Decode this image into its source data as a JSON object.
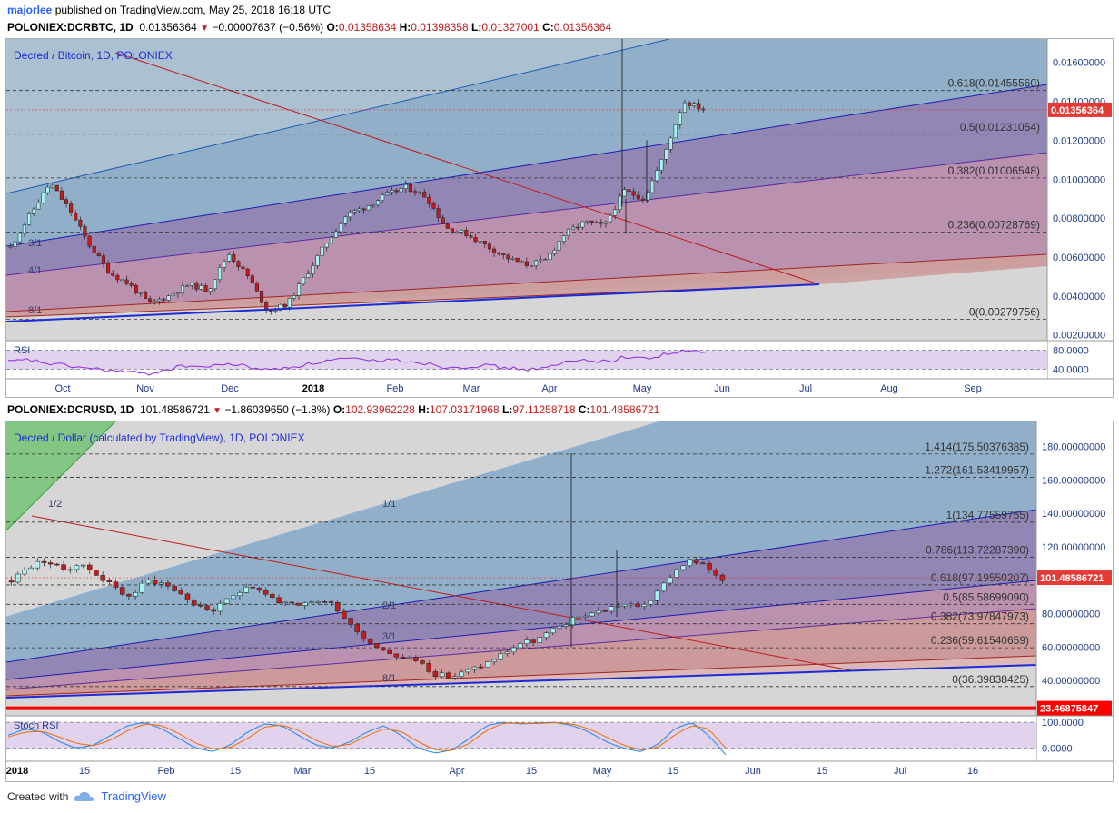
{
  "header": {
    "author": "majorlee",
    "published": "published on TradingView.com, May 25, 2018 16:18 UTC"
  },
  "chart1": {
    "symbol_line": {
      "symbol": "POLONIEX:DCRBTC, 1D",
      "last": "0.01356364",
      "change": "−0.00007637 (−0.56%)",
      "o_label": "O:",
      "o": "0.01358634",
      "h_label": "H:",
      "h": "0.01398358",
      "l_label": "L:",
      "l": "0.01327001",
      "c_label": "C:",
      "c": "0.01356364"
    },
    "title": "Decred / Bitcoin, 1D, POLONIEX",
    "price_badge": "0.01356364",
    "fib_labels": [
      "0.618(0.01455560)",
      "0.5(0.01231054)",
      "0.382(0.01006548)",
      "0.236(0.00728769)",
      "0(0.00279756)"
    ],
    "fan_labels": [
      "3/1",
      "4/1",
      "8/1"
    ],
    "x_labels": [
      "Oct",
      "Nov",
      "Dec",
      "2018",
      "Feb",
      "Mar",
      "Apr",
      "May",
      "Jun",
      "Jul",
      "Aug",
      "Sep"
    ],
    "rsi_label": "RSI",
    "rsi_ticks": [
      "80.0000",
      "40.0000"
    ]
  },
  "chart2": {
    "symbol_line": {
      "symbol": "POLONIEX:DCRUSD, 1D",
      "last": "101.48586721",
      "change": "−1.86039650 (−1.8%)",
      "o_label": "O:",
      "o": "102.93962228",
      "h_label": "H:",
      "h": "107.03171968",
      "l_label": "L:",
      "l": "97.11258718",
      "c_label": "C:",
      "c": "101.48586721"
    },
    "title": "Decred / Dollar (calculated by TradingView), 1D, POLONIEX",
    "price_badge": "101.48586721",
    "support_badge": "23.46875847",
    "fib_labels": [
      "1.414(175.50376385)",
      "1.272(161.53419957)",
      "1(134.77559755)",
      "0.786(113.72287390)",
      "0.618(97.19550207)",
      "0.5(85.58699090)",
      "0.382(73.97847973)",
      "0.236(59.61540659)",
      "0(36.39838425)"
    ],
    "fan_labels": [
      "1/2",
      "1/1",
      "2/1",
      "3/1",
      "8/1"
    ],
    "x_labels": [
      "2018",
      "15",
      "Feb",
      "15",
      "Mar",
      "15",
      "Apr",
      "15",
      "May",
      "15",
      "Jun",
      "15",
      "Jul",
      "16"
    ],
    "stoch_label": "Stoch RSI",
    "stoch_ticks": [
      "100.0000",
      "0.0000"
    ]
  },
  "chart_data": [
    {
      "type": "candlestick",
      "title": "Decred / Bitcoin, 1D, POLONIEX",
      "ylim": [
        0.0018,
        0.0172
      ],
      "y_ticks": [
        "0.01600000",
        "0.01400000",
        "0.01200000",
        "0.01000000",
        "0.00800000",
        "0.00600000",
        "0.00400000",
        "0.00200000"
      ],
      "y_tick_values": [
        0.016,
        0.014,
        0.012,
        0.01,
        0.008,
        0.006,
        0.004,
        0.002
      ],
      "x_categories": [
        "Oct",
        "Nov",
        "Dec",
        "2018",
        "Feb",
        "Mar",
        "Apr",
        "May",
        "Jun",
        "Jul",
        "Aug",
        "Sep"
      ],
      "close_path": [
        0.0065,
        0.0082,
        0.0098,
        0.0084,
        0.0066,
        0.0052,
        0.0046,
        0.0036,
        0.004,
        0.0046,
        0.0043,
        0.0062,
        0.005,
        0.0032,
        0.0036,
        0.0052,
        0.0068,
        0.0082,
        0.0086,
        0.0092,
        0.0096,
        0.0091,
        0.0075,
        0.0072,
        0.0066,
        0.006,
        0.0056,
        0.0058,
        0.0072,
        0.0078,
        0.0076,
        0.0094,
        0.009,
        0.0112,
        0.014,
        0.0136
      ],
      "fib_levels": [
        {
          "ratio": "0.618",
          "value": 0.0145556
        },
        {
          "ratio": "0.5",
          "value": 0.01231054
        },
        {
          "ratio": "0.382",
          "value": 0.01006548
        },
        {
          "ratio": "0.236",
          "value": 0.00728769
        },
        {
          "ratio": "0",
          "value": 0.00279756
        }
      ],
      "last_price": 0.01356364,
      "indicator": {
        "name": "RSI",
        "ylim": [
          20,
          100
        ],
        "levels": [
          80,
          40
        ],
        "values": [
          55,
          60,
          52,
          47,
          42,
          38,
          34,
          30,
          40,
          48,
          44,
          52,
          46,
          38,
          44,
          50,
          58,
          62,
          57,
          60,
          58,
          52,
          44,
          46,
          48,
          42,
          40,
          42,
          55,
          60,
          56,
          66,
          62,
          72,
          78,
          75
        ]
      }
    },
    {
      "type": "candlestick",
      "title": "Decred / Dollar (calculated by TradingView), 1D, POLONIEX",
      "ylim": [
        20,
        195
      ],
      "y_ticks": [
        "180.00000000",
        "160.00000000",
        "140.00000000",
        "120.00000000",
        "100.00000000",
        "80.00000000",
        "60.00000000",
        "40.00000000"
      ],
      "y_tick_values": [
        180,
        160,
        140,
        120,
        100,
        80,
        60,
        40
      ],
      "x_categories": [
        "2018",
        "15",
        "Feb",
        "15",
        "Mar",
        "15",
        "Apr",
        "15",
        "May",
        "15",
        "Jun",
        "15",
        "Jul",
        "16"
      ],
      "close_path": [
        100,
        108,
        112,
        106,
        110,
        104,
        96,
        90,
        100,
        98,
        92,
        84,
        82,
        90,
        98,
        92,
        86,
        84,
        88,
        86,
        74,
        64,
        58,
        54,
        52,
        44,
        42,
        46,
        50,
        56,
        62,
        64,
        70,
        76,
        80,
        82,
        86,
        84,
        90,
        104,
        112,
        108,
        101
      ],
      "fib_levels": [
        {
          "ratio": "1.414",
          "value": 175.50376385
        },
        {
          "ratio": "1.272",
          "value": 161.53419957
        },
        {
          "ratio": "1",
          "value": 134.77559755
        },
        {
          "ratio": "0.786",
          "value": 113.7228739
        },
        {
          "ratio": "0.618",
          "value": 97.19550207
        },
        {
          "ratio": "0.5",
          "value": 85.5869909
        },
        {
          "ratio": "0.382",
          "value": 73.97847973
        },
        {
          "ratio": "0.236",
          "value": 59.61540659
        },
        {
          "ratio": "0",
          "value": 36.39838425
        }
      ],
      "last_price": 101.48586721,
      "support": 23.46875847,
      "indicator": {
        "name": "Stoch RSI",
        "ylim": [
          -20,
          120
        ],
        "levels": [
          100,
          20
        ],
        "k": [
          60,
          80,
          70,
          40,
          20,
          30,
          60,
          90,
          100,
          80,
          50,
          20,
          10,
          30,
          70,
          95,
          90,
          60,
          30,
          20,
          40,
          70,
          90,
          60,
          20,
          5,
          15,
          50,
          90,
          100,
          95,
          98,
          100,
          90,
          70,
          40,
          20,
          10,
          30,
          80,
          100,
          60,
          0
        ],
        "d": [
          55,
          70,
          72,
          55,
          35,
          28,
          45,
          75,
          95,
          90,
          65,
          35,
          18,
          22,
          50,
          85,
          92,
          75,
          45,
          25,
          32,
          58,
          80,
          72,
          40,
          15,
          12,
          35,
          75,
          98,
          97,
          96,
          99,
          95,
          80,
          55,
          30,
          15,
          22,
          60,
          90,
          80,
          20
        ]
      }
    }
  ]
}
